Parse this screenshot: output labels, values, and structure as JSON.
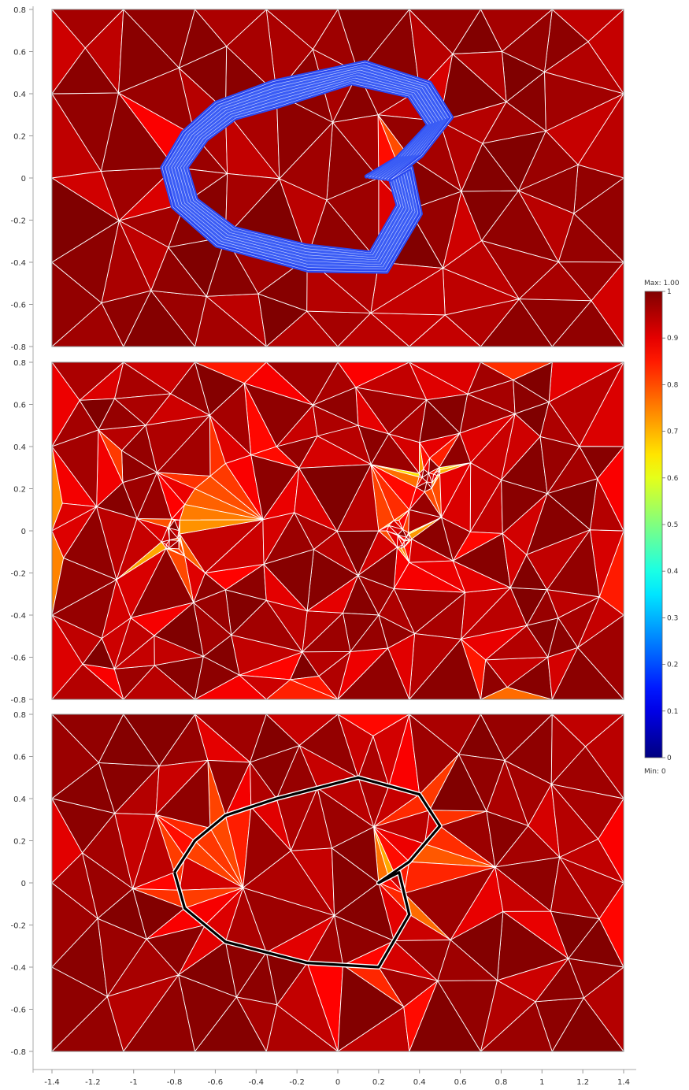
{
  "chart_data": {
    "type": "heatmap",
    "description_type": "triangular mesh element quality plots (3 panels) with shared colorbar",
    "panels": [
      {
        "xlim": [
          -1.4,
          1.4
        ],
        "ylim": [
          -0.8,
          0.8
        ],
        "y_ticks": [
          "0.8",
          "0.6",
          "0.4",
          "0.2",
          "0",
          "-0.2",
          "-0.4",
          "-0.6",
          "-0.8"
        ],
        "boundary_layer_color": "#2a48f0"
      },
      {
        "xlim": [
          -1.4,
          1.4
        ],
        "ylim": [
          -0.8,
          0.8
        ],
        "y_ticks": [
          "0.8",
          "0.6",
          "0.4",
          "0.2",
          "0",
          "-0.2",
          "-0.4",
          "-0.6",
          "-0.8"
        ]
      },
      {
        "xlim": [
          -1.4,
          1.4
        ],
        "ylim": [
          -0.8,
          0.8
        ],
        "y_ticks": [
          "0.8",
          "0.6",
          "0.4",
          "0.2",
          "0",
          "-0.2",
          "-0.4",
          "-0.6",
          "-0.8"
        ],
        "outline_color": "#000000"
      }
    ],
    "x_ticks": [
      "-1.4",
      "-1.2",
      "-1",
      "-0.8",
      "-0.6",
      "-0.4",
      "-0.2",
      "0",
      "0.2",
      "0.4",
      "0.6",
      "0.8",
      "1",
      "1.2",
      "1.4"
    ],
    "shape_outline": [
      [
        -0.8,
        0.05
      ],
      [
        -0.7,
        0.2
      ],
      [
        -0.55,
        0.32
      ],
      [
        -0.3,
        0.4
      ],
      [
        0.1,
        0.5
      ],
      [
        0.4,
        0.42
      ],
      [
        0.5,
        0.27
      ],
      [
        0.35,
        0.1
      ],
      [
        0.2,
        0.0
      ],
      [
        0.3,
        0.05
      ],
      [
        0.35,
        -0.15
      ],
      [
        0.2,
        -0.4
      ],
      [
        -0.15,
        -0.38
      ],
      [
        -0.55,
        -0.28
      ],
      [
        -0.75,
        -0.12
      ],
      [
        -0.8,
        0.05
      ]
    ],
    "colorbar": {
      "max_label": "Max: 1.00",
      "min_label": "Min: 0",
      "range": [
        0,
        1
      ],
      "ticks": [
        "1",
        "0.9",
        "0.8",
        "0.7",
        "0.6",
        "0.5",
        "0.4",
        "0.3",
        "0.2",
        "0.1",
        "0"
      ],
      "colormap": "jet"
    }
  }
}
